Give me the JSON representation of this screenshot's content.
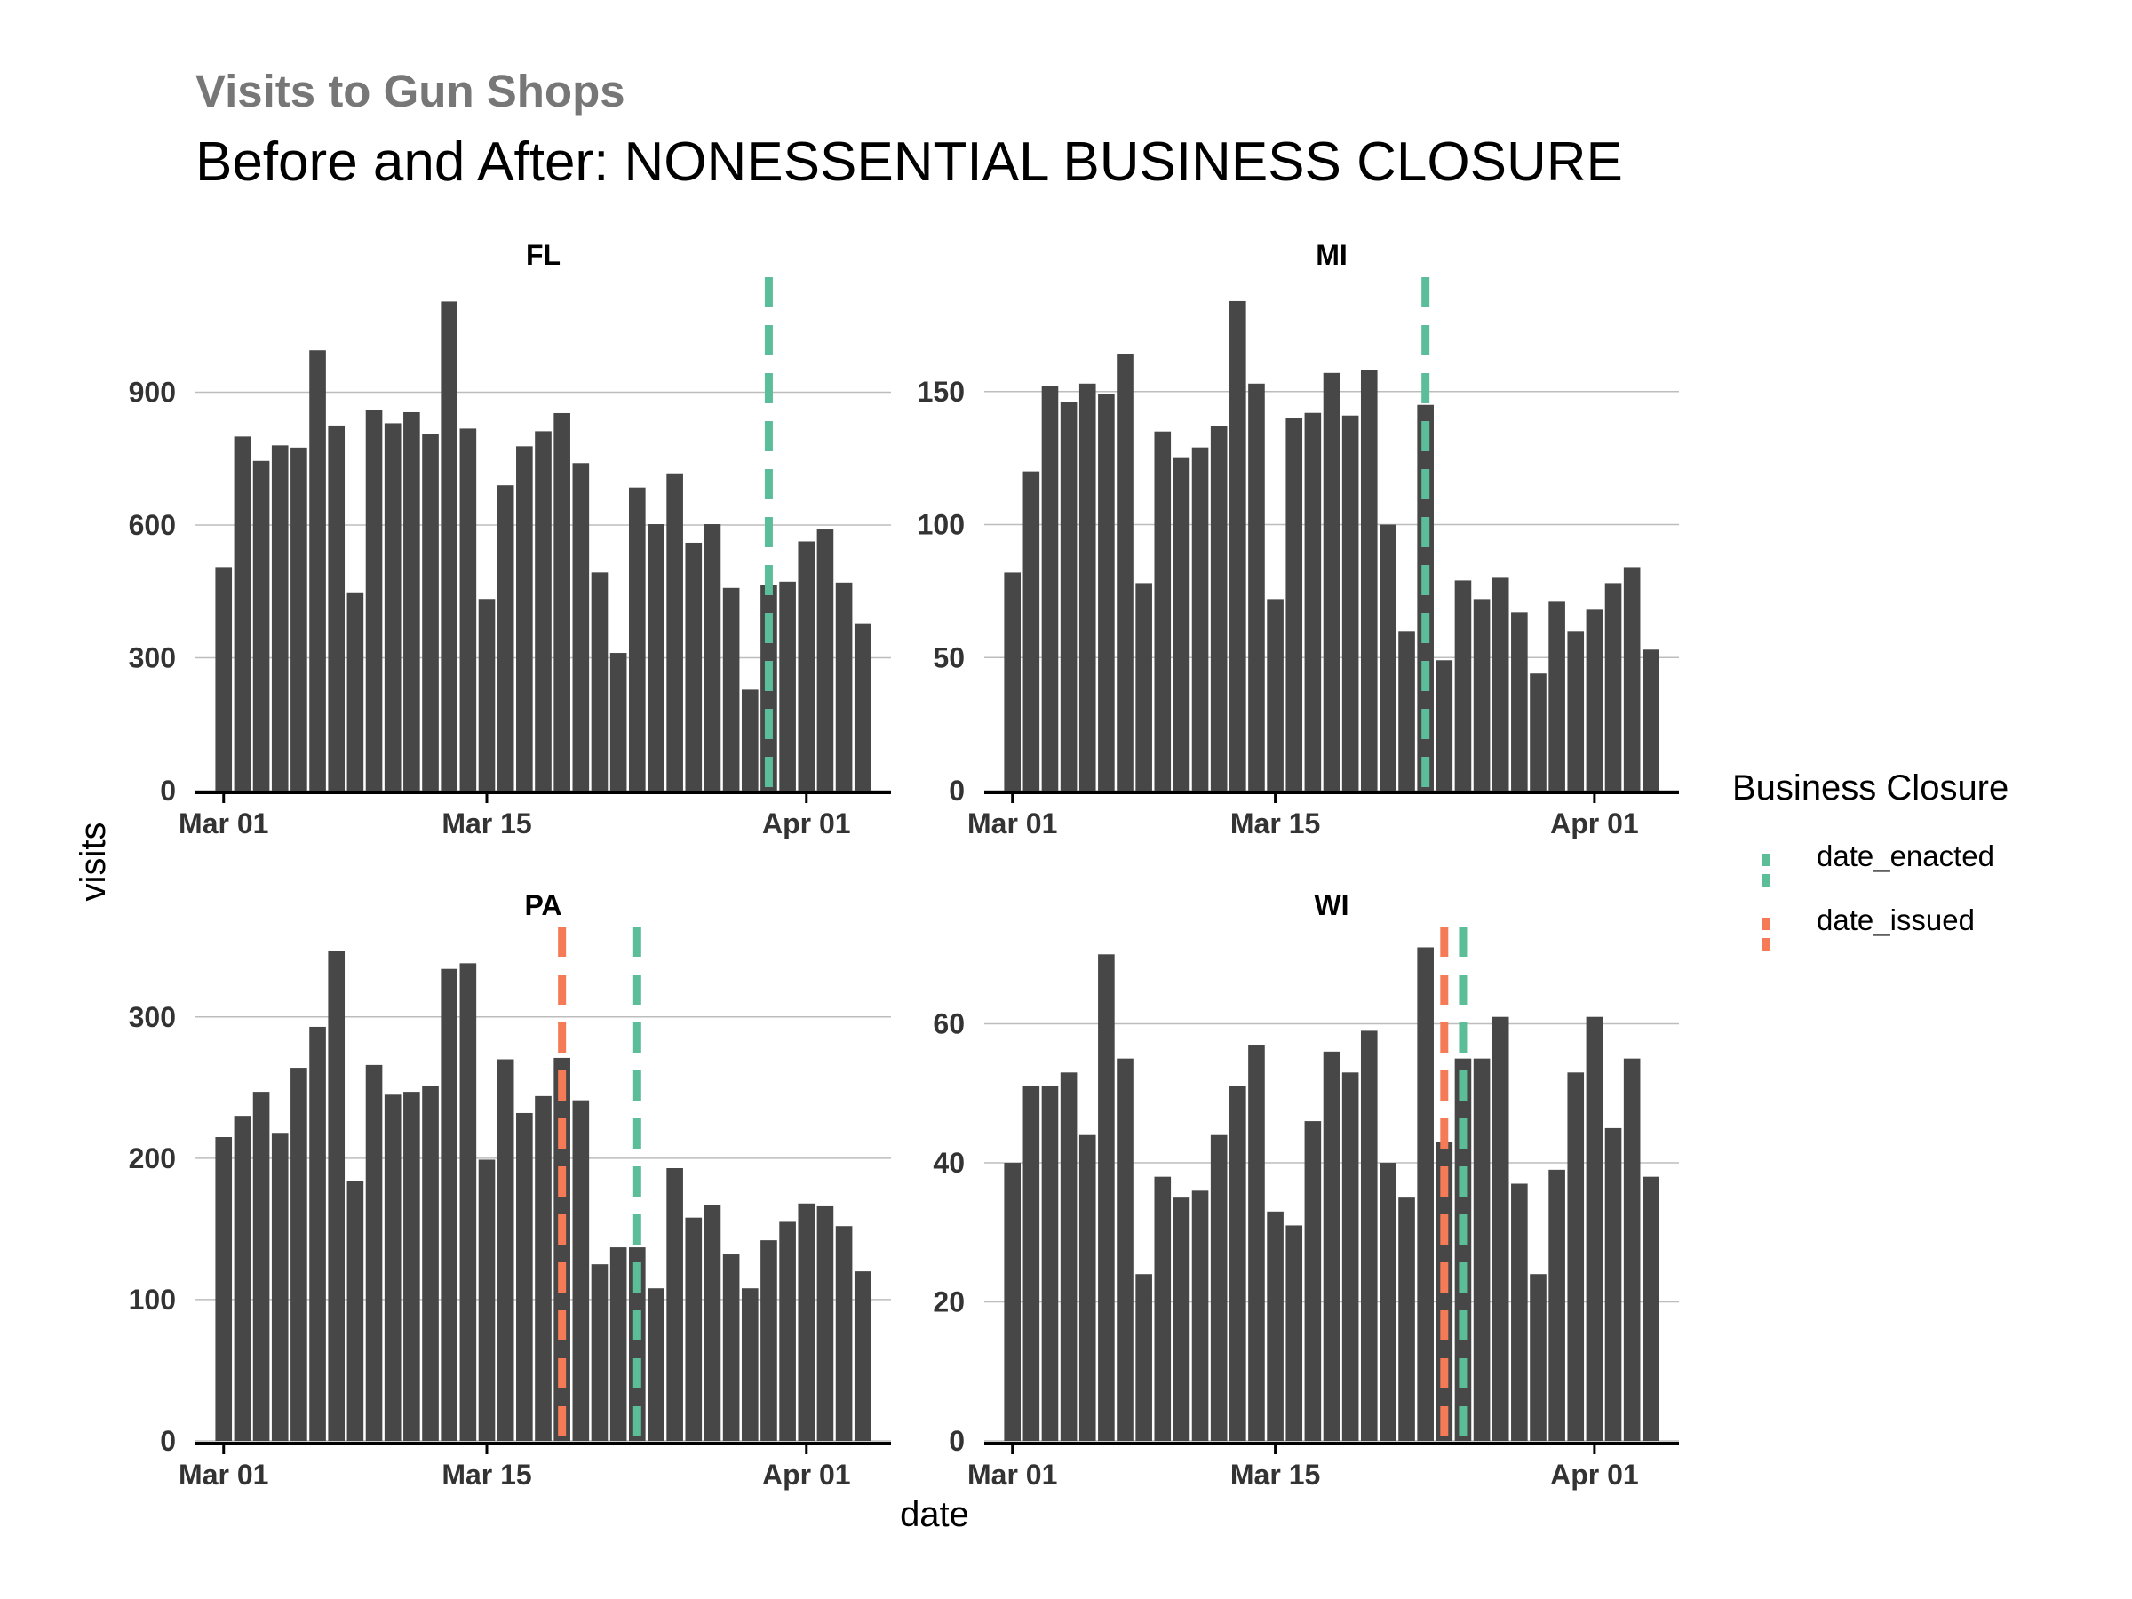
{
  "title": "Visits to Gun Shops",
  "subtitle": "Before and After: NONESSENTIAL BUSINESS CLOSURE",
  "legend": {
    "title": "Business Closure",
    "items": [
      {
        "label": "date_enacted",
        "color": "#5BBE98"
      },
      {
        "label": "date_issued",
        "color": "#F47B56"
      }
    ]
  },
  "colors": {
    "bar": "#474747",
    "grid": "#bdbdbd",
    "axis": "#000000"
  },
  "chart_data": [
    {
      "type": "bar",
      "panel": "FL",
      "xlabel": "date",
      "ylabel": "visits",
      "x": [
        "2020-03-01",
        "2020-03-02",
        "2020-03-03",
        "2020-03-04",
        "2020-03-05",
        "2020-03-06",
        "2020-03-07",
        "2020-03-08",
        "2020-03-09",
        "2020-03-10",
        "2020-03-11",
        "2020-03-12",
        "2020-03-13",
        "2020-03-14",
        "2020-03-15",
        "2020-03-16",
        "2020-03-17",
        "2020-03-18",
        "2020-03-19",
        "2020-03-20",
        "2020-03-21",
        "2020-03-22",
        "2020-03-23",
        "2020-03-24",
        "2020-03-25",
        "2020-03-26",
        "2020-03-27",
        "2020-03-28",
        "2020-03-29",
        "2020-03-30",
        "2020-03-31",
        "2020-04-01",
        "2020-04-02",
        "2020-04-03",
        "2020-04-04"
      ],
      "values": [
        505,
        800,
        745,
        780,
        775,
        995,
        825,
        448,
        860,
        830,
        855,
        805,
        1105,
        818,
        433,
        690,
        778,
        812,
        853,
        740,
        493,
        311,
        685,
        602,
        715,
        560,
        602,
        458,
        228,
        465,
        472,
        563,
        590,
        470,
        378
      ],
      "ylim": [
        0,
        1160
      ],
      "yticks": [
        0,
        300,
        600,
        900
      ],
      "xticks": [
        {
          "date": "2020-03-01",
          "label": "Mar 01"
        },
        {
          "date": "2020-03-15",
          "label": "Mar 15"
        },
        {
          "date": "2020-04-01",
          "label": "Apr 01"
        }
      ],
      "closure_lines": [
        {
          "type": "date_enacted",
          "date": "2020-03-30"
        }
      ]
    },
    {
      "type": "bar",
      "panel": "MI",
      "xlabel": "date",
      "ylabel": "visits",
      "x": [
        "2020-03-01",
        "2020-03-02",
        "2020-03-03",
        "2020-03-04",
        "2020-03-05",
        "2020-03-06",
        "2020-03-07",
        "2020-03-08",
        "2020-03-09",
        "2020-03-10",
        "2020-03-11",
        "2020-03-12",
        "2020-03-13",
        "2020-03-14",
        "2020-03-15",
        "2020-03-16",
        "2020-03-17",
        "2020-03-18",
        "2020-03-19",
        "2020-03-20",
        "2020-03-21",
        "2020-03-22",
        "2020-03-23",
        "2020-03-24",
        "2020-03-25",
        "2020-03-26",
        "2020-03-27",
        "2020-03-28",
        "2020-03-29",
        "2020-03-30",
        "2020-03-31",
        "2020-04-01",
        "2020-04-02",
        "2020-04-03",
        "2020-04-04"
      ],
      "values": [
        82,
        120,
        152,
        146,
        153,
        149,
        164,
        78,
        135,
        125,
        129,
        137,
        184,
        153,
        72,
        140,
        142,
        157,
        141,
        158,
        100,
        60,
        145,
        49,
        79,
        72,
        80,
        67,
        44,
        71,
        60,
        68,
        78,
        84,
        53
      ],
      "ylim": [
        0,
        193
      ],
      "yticks": [
        0,
        50,
        100,
        150
      ],
      "xticks": [
        {
          "date": "2020-03-01",
          "label": "Mar 01"
        },
        {
          "date": "2020-03-15",
          "label": "Mar 15"
        },
        {
          "date": "2020-04-01",
          "label": "Apr 01"
        }
      ],
      "closure_lines": [
        {
          "type": "date_enacted",
          "date": "2020-03-23"
        }
      ]
    },
    {
      "type": "bar",
      "panel": "PA",
      "xlabel": "date",
      "ylabel": "visits",
      "x": [
        "2020-03-01",
        "2020-03-02",
        "2020-03-03",
        "2020-03-04",
        "2020-03-05",
        "2020-03-06",
        "2020-03-07",
        "2020-03-08",
        "2020-03-09",
        "2020-03-10",
        "2020-03-11",
        "2020-03-12",
        "2020-03-13",
        "2020-03-14",
        "2020-03-15",
        "2020-03-16",
        "2020-03-17",
        "2020-03-18",
        "2020-03-19",
        "2020-03-20",
        "2020-03-21",
        "2020-03-22",
        "2020-03-23",
        "2020-03-24",
        "2020-03-25",
        "2020-03-26",
        "2020-03-27",
        "2020-03-28",
        "2020-03-29",
        "2020-03-30",
        "2020-03-31",
        "2020-04-01",
        "2020-04-02",
        "2020-04-03",
        "2020-04-04"
      ],
      "values": [
        215,
        230,
        247,
        218,
        264,
        293,
        347,
        184,
        266,
        245,
        247,
        251,
        334,
        338,
        199,
        270,
        232,
        244,
        271,
        241,
        125,
        137,
        137,
        108,
        193,
        158,
        167,
        132,
        108,
        142,
        155,
        168,
        166,
        152,
        120
      ],
      "ylim": [
        0,
        364
      ],
      "yticks": [
        0,
        100,
        200,
        300
      ],
      "xticks": [
        {
          "date": "2020-03-01",
          "label": "Mar 01"
        },
        {
          "date": "2020-03-15",
          "label": "Mar 15"
        },
        {
          "date": "2020-04-01",
          "label": "Apr 01"
        }
      ],
      "closure_lines": [
        {
          "type": "date_issued",
          "date": "2020-03-19"
        },
        {
          "type": "date_enacted",
          "date": "2020-03-23"
        }
      ]
    },
    {
      "type": "bar",
      "panel": "WI",
      "xlabel": "date",
      "ylabel": "visits",
      "x": [
        "2020-03-01",
        "2020-03-02",
        "2020-03-03",
        "2020-03-04",
        "2020-03-05",
        "2020-03-06",
        "2020-03-07",
        "2020-03-08",
        "2020-03-09",
        "2020-03-10",
        "2020-03-11",
        "2020-03-12",
        "2020-03-13",
        "2020-03-14",
        "2020-03-15",
        "2020-03-16",
        "2020-03-17",
        "2020-03-18",
        "2020-03-19",
        "2020-03-20",
        "2020-03-21",
        "2020-03-22",
        "2020-03-23",
        "2020-03-24",
        "2020-03-25",
        "2020-03-26",
        "2020-03-27",
        "2020-03-28",
        "2020-03-29",
        "2020-03-30",
        "2020-03-31",
        "2020-04-01",
        "2020-04-02",
        "2020-04-03",
        "2020-04-04"
      ],
      "values": [
        40,
        51,
        51,
        53,
        44,
        70,
        55,
        24,
        38,
        35,
        36,
        44,
        51,
        57,
        33,
        31,
        46,
        56,
        53,
        59,
        40,
        35,
        71,
        43,
        55,
        55,
        61,
        37,
        24,
        39,
        53,
        61,
        45,
        55,
        38
      ],
      "ylim": [
        0,
        74
      ],
      "yticks": [
        0,
        20,
        40,
        60
      ],
      "xticks": [
        {
          "date": "2020-03-01",
          "label": "Mar 01"
        },
        {
          "date": "2020-03-15",
          "label": "Mar 15"
        },
        {
          "date": "2020-04-01",
          "label": "Apr 01"
        }
      ],
      "closure_lines": [
        {
          "type": "date_issued",
          "date": "2020-03-24"
        },
        {
          "type": "date_enacted",
          "date": "2020-03-25"
        }
      ]
    }
  ]
}
